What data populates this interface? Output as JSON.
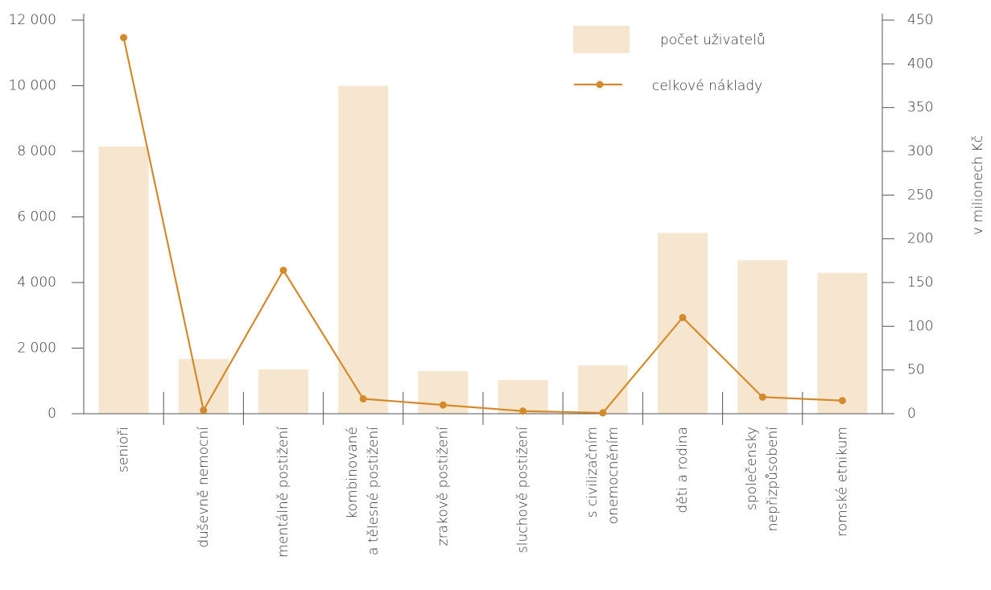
{
  "chart_data": {
    "type": "bar_line",
    "categories": [
      "senioři",
      "duševně nemocní",
      "mentálně postižení",
      "kombinované\na tělesné postižení",
      "zrakově postižení",
      "sluchově postižení",
      "s civilizačním\nonemocněním",
      "děti a rodina",
      "společensky\nnepřizpůsobení",
      "romské etnikum"
    ],
    "series": [
      {
        "name": "počet uživatelů",
        "color": "#f7e6cf",
        "values": [
          8150,
          1670,
          1350,
          10000,
          1300,
          1030,
          1470,
          5510,
          4680,
          4290
        ]
      },
      {
        "name": "celkové náklady",
        "color": "#d38a2b",
        "axis": "y2",
        "values": [
          430,
          4,
          164,
          17,
          10,
          3,
          1,
          110,
          19,
          15
        ]
      }
    ],
    "ylim": [
      0,
      12000
    ],
    "yticks": [
      {
        "value": 0,
        "label": "0"
      },
      {
        "value": 2000,
        "label": "2 000"
      },
      {
        "value": 4000,
        "label": "4 000"
      },
      {
        "value": 6000,
        "label": "6 000"
      },
      {
        "value": 8000,
        "label": "8 000"
      },
      {
        "value": 10000,
        "label": "10 000"
      },
      {
        "value": 12000,
        "label": "12 000"
      }
    ],
    "y2lim": [
      0,
      450
    ],
    "y2ticks": [
      0,
      50,
      100,
      150,
      200,
      250,
      300,
      350,
      400,
      450
    ],
    "y2_label": "v milionech Kč"
  }
}
